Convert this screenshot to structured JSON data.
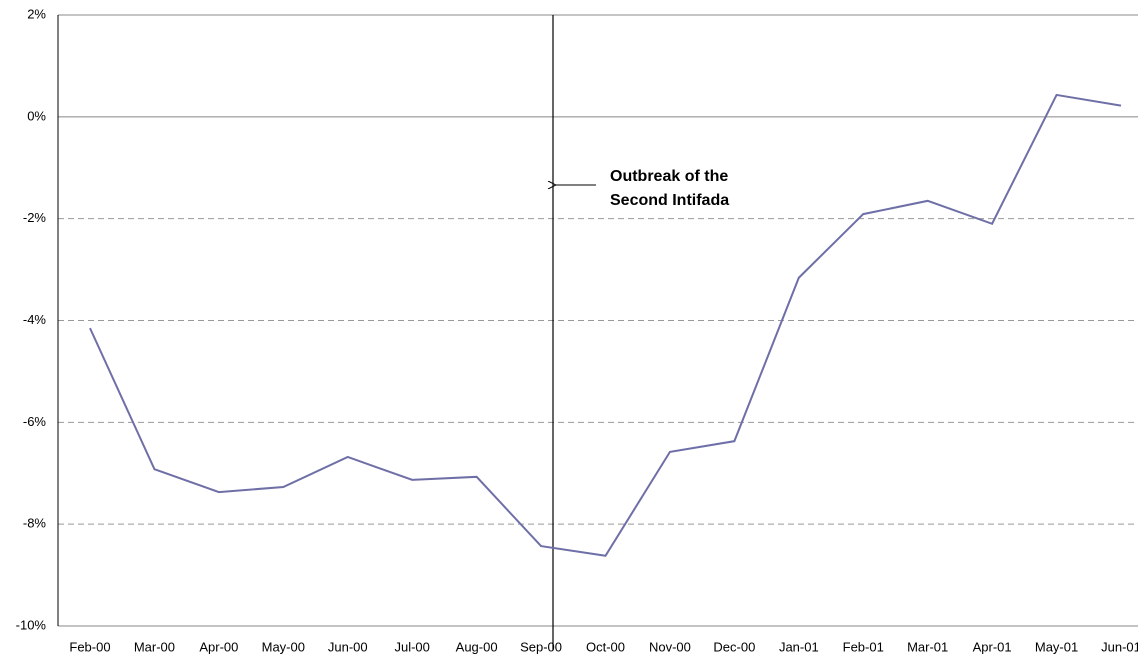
{
  "chart_data": {
    "type": "line",
    "categories": [
      "Feb-00",
      "Mar-00",
      "Apr-00",
      "May-00",
      "Jun-00",
      "Jul-00",
      "Aug-00",
      "Sep-00",
      "Oct-00",
      "Nov-00",
      "Dec-00",
      "Jan-01",
      "Feb-01",
      "Mar-01",
      "Apr-01",
      "May-01",
      "Jun-01"
    ],
    "values": [
      -4.15,
      -6.92,
      -7.37,
      -7.27,
      -6.68,
      -7.13,
      -7.07,
      -8.43,
      -8.62,
      -6.58,
      -6.37,
      -3.16,
      -1.91,
      -1.65,
      -2.1,
      0.43,
      0.22
    ],
    "color": "#6f6fa8",
    "ylim": [
      -10,
      2
    ],
    "yticks": [
      {
        "value": -10,
        "label": "-10%"
      },
      {
        "value": -8,
        "label": "-8%"
      },
      {
        "value": -6,
        "label": "-6%"
      },
      {
        "value": -4,
        "label": "-4%"
      },
      {
        "value": -2,
        "label": "-2%"
      },
      {
        "value": 0,
        "label": "0%"
      },
      {
        "value": 2,
        "label": "2%"
      }
    ],
    "grid": true,
    "annotation": [
      "Outbreak of the",
      "Second Intifada"
    ]
  }
}
